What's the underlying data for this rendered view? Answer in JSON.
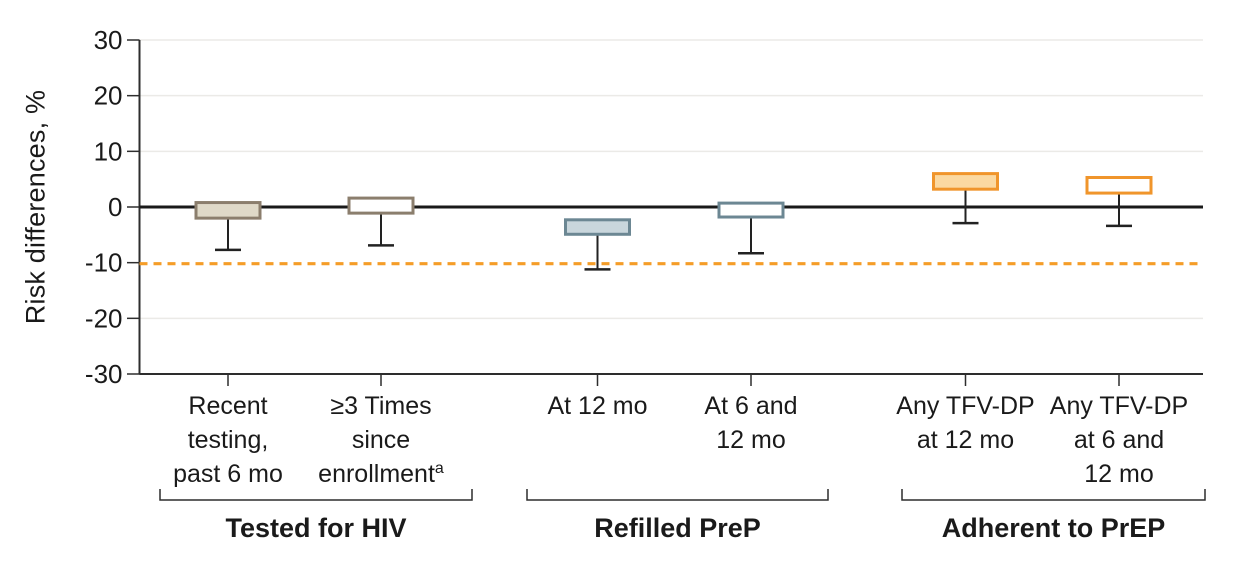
{
  "chart_data": {
    "type": "box",
    "title": "",
    "ylabel": "Risk differences, %",
    "xlabel": "",
    "ylim": [
      -30,
      30
    ],
    "yticks": [
      {
        "value": 30,
        "label": "30"
      },
      {
        "value": 20,
        "label": "20"
      },
      {
        "value": 10,
        "label": "10"
      },
      {
        "value": 0,
        "label": "0"
      },
      {
        "value": -10,
        "label": "-10"
      },
      {
        "value": -20,
        "label": "-20"
      },
      {
        "value": -30,
        "label": "-30"
      }
    ],
    "gridline_values": [
      30,
      20,
      10,
      -20
    ],
    "grid": "horizontal-light",
    "legend": "none",
    "zero_line": {
      "value": 0,
      "color": "#1a1a1a"
    },
    "noninferiority_line": {
      "value": -10,
      "style": "dashed",
      "color": "#F59D28"
    },
    "groups": [
      {
        "label": "Tested for HIV",
        "border_color": "#8B7E6D",
        "fill_color": "#DFD9C8",
        "items": [
          {
            "label_lines": [
              "Recent",
              "testing,",
              "past 6 mo"
            ],
            "superscript": "",
            "filled": true,
            "box_top": 0.8,
            "box_bottom": -2.0,
            "whisker_low": -7.7
          },
          {
            "label_lines": [
              "≥3 Times",
              "since",
              "enrollment"
            ],
            "superscript": "a",
            "filled": false,
            "box_top": 1.6,
            "box_bottom": -1.1,
            "whisker_low": -6.9
          }
        ]
      },
      {
        "label": "Refilled PreP",
        "border_color": "#6C8793",
        "fill_color": "#C9D6DC",
        "items": [
          {
            "label_lines": [
              "At 12 mo"
            ],
            "superscript": "",
            "filled": true,
            "box_top": -2.3,
            "box_bottom": -4.9,
            "whisker_low": -11.2
          },
          {
            "label_lines": [
              "At 6 and",
              "12 mo"
            ],
            "superscript": "",
            "filled": false,
            "box_top": 0.7,
            "box_bottom": -1.8,
            "whisker_low": -8.3
          }
        ]
      },
      {
        "label": "Adherent to PrEP",
        "border_color": "#F0952B",
        "fill_color": "#FBD9A1",
        "items": [
          {
            "label_lines": [
              "Any TFV-DP",
              "at 12 mo"
            ],
            "superscript": "",
            "filled": true,
            "box_top": 6.0,
            "box_bottom": 3.2,
            "whisker_low": -2.9
          },
          {
            "label_lines": [
              "Any TFV-DP",
              "at 6 and",
              "12 mo"
            ],
            "superscript": "",
            "filled": false,
            "box_top": 5.3,
            "box_bottom": 2.5,
            "whisker_low": -3.4
          }
        ]
      }
    ],
    "colors": {
      "axis": "#2d2d2d",
      "gridline": "#ebeae7",
      "text": "#1a1a1a",
      "whisker": "#222222",
      "unfilled_box": "#ffffff"
    }
  }
}
